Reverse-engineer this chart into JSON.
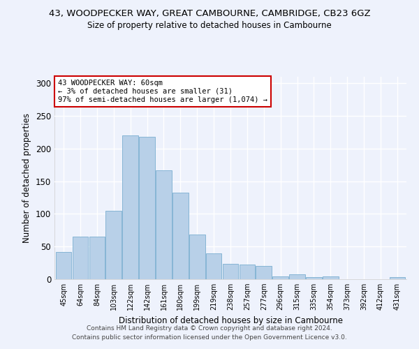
{
  "title_line1": "43, WOODPECKER WAY, GREAT CAMBOURNE, CAMBRIDGE, CB23 6GZ",
  "title_line2": "Size of property relative to detached houses in Cambourne",
  "xlabel": "Distribution of detached houses by size in Cambourne",
  "ylabel": "Number of detached properties",
  "categories": [
    "45sqm",
    "64sqm",
    "84sqm",
    "103sqm",
    "122sqm",
    "142sqm",
    "161sqm",
    "180sqm",
    "199sqm",
    "219sqm",
    "238sqm",
    "257sqm",
    "277sqm",
    "296sqm",
    "315sqm",
    "335sqm",
    "354sqm",
    "373sqm",
    "392sqm",
    "412sqm",
    "431sqm"
  ],
  "values": [
    42,
    65,
    65,
    105,
    220,
    218,
    167,
    133,
    68,
    40,
    23,
    22,
    20,
    4,
    8,
    3,
    4,
    0,
    0,
    0,
    3
  ],
  "bar_color": "#b8d0e8",
  "bar_edge_color": "#7aaed0",
  "annotation_text": "43 WOODPECKER WAY: 60sqm\n← 3% of detached houses are smaller (31)\n97% of semi-detached houses are larger (1,074) →",
  "annotation_box_color": "#ffffff",
  "annotation_box_edge_color": "#cc0000",
  "ylim": [
    0,
    310
  ],
  "yticks": [
    0,
    50,
    100,
    150,
    200,
    250,
    300
  ],
  "background_color": "#eef2fc",
  "grid_color": "#ffffff",
  "footer_line1": "Contains HM Land Registry data © Crown copyright and database right 2024.",
  "footer_line2": "Contains public sector information licensed under the Open Government Licence v3.0."
}
